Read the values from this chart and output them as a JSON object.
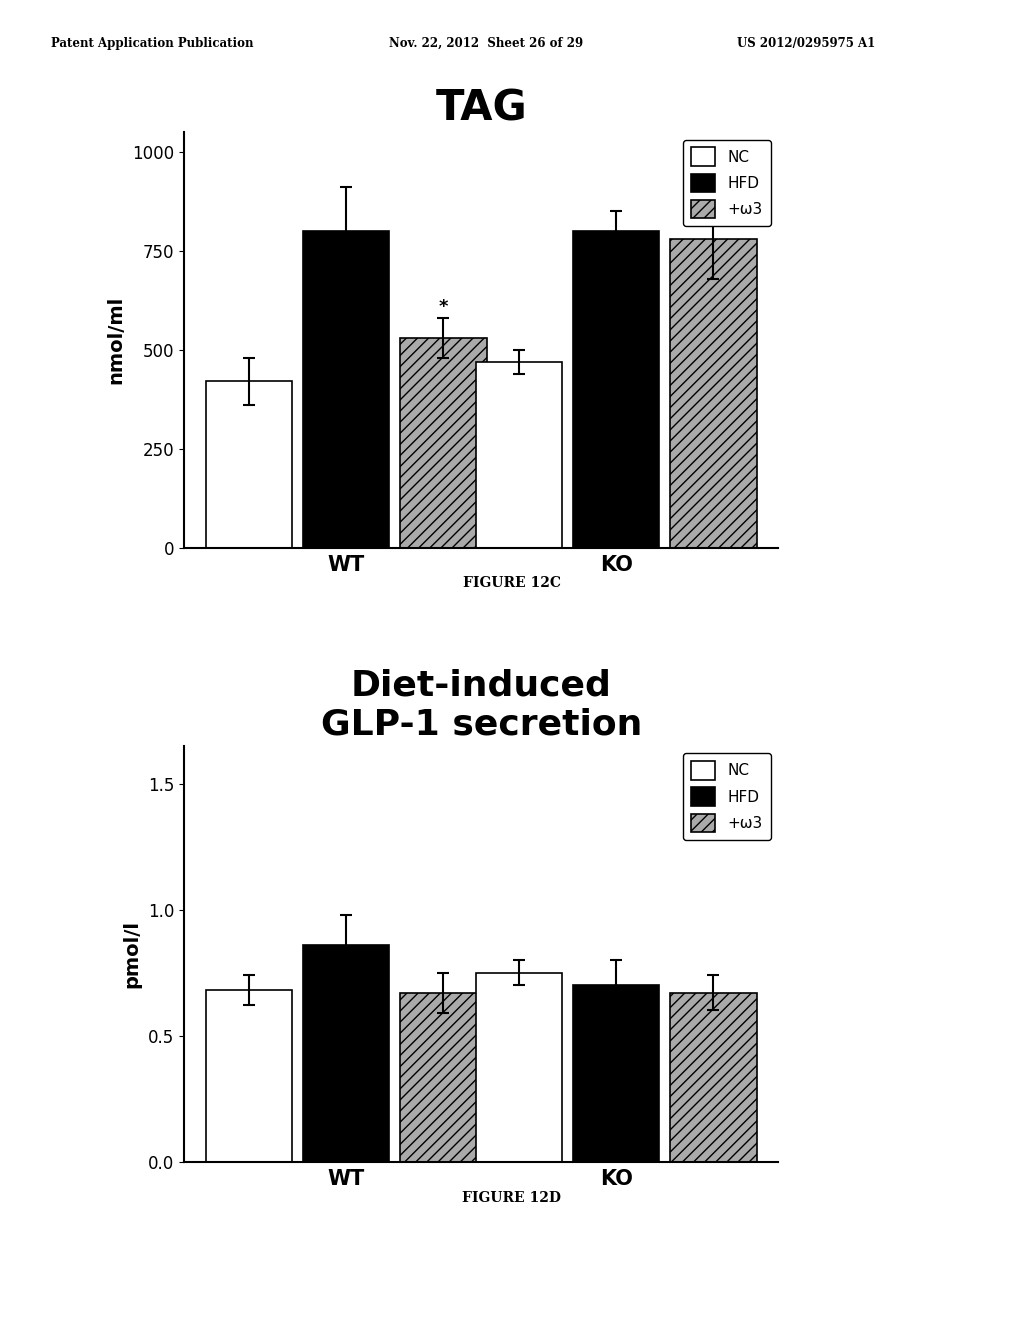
{
  "fig_width": 10.24,
  "fig_height": 13.2,
  "background_color": "#ffffff",
  "header_left": "Patent Application Publication",
  "header_mid": "Nov. 22, 2012  Sheet 26 of 29",
  "header_right": "US 2012/0295975 A1",
  "chart1": {
    "title": "TAG",
    "title_fontsize": 30,
    "title_fontweight": "bold",
    "ylabel": "nmol/ml",
    "ylabel_fontsize": 14,
    "groups": [
      "WT",
      "KO"
    ],
    "conditions": [
      "NC",
      "HFD",
      "+ω3"
    ],
    "values_WT": [
      420,
      800,
      530
    ],
    "values_KO": [
      470,
      800,
      780
    ],
    "errors_WT": [
      60,
      110,
      50
    ],
    "errors_KO": [
      30,
      50,
      100
    ],
    "ylim": [
      0,
      1050
    ],
    "yticks": [
      0,
      250,
      500,
      750,
      1000
    ],
    "bar_colors": [
      "white",
      "black",
      "#aaaaaa"
    ],
    "bar_hatches": [
      null,
      null,
      "///"
    ],
    "figure_label": "FIGURE 12C",
    "annotation": "*",
    "annotation_value": 585
  },
  "chart2": {
    "title": "Diet-induced\nGLP-1 secretion",
    "title_fontsize": 26,
    "title_fontweight": "bold",
    "ylabel": "pmol/l",
    "ylabel_fontsize": 14,
    "groups": [
      "WT",
      "KO"
    ],
    "conditions": [
      "NC",
      "HFD",
      "+ω3"
    ],
    "values_WT": [
      0.68,
      0.86,
      0.67
    ],
    "values_KO": [
      0.75,
      0.7,
      0.67
    ],
    "errors_WT": [
      0.06,
      0.12,
      0.08
    ],
    "errors_KO": [
      0.05,
      0.1,
      0.07
    ],
    "ylim": [
      0.0,
      1.65
    ],
    "yticks": [
      0.0,
      0.5,
      1.0,
      1.5
    ],
    "bar_colors": [
      "white",
      "black",
      "#aaaaaa"
    ],
    "bar_hatches": [
      null,
      null,
      "///"
    ],
    "figure_label": "FIGURE 12D"
  }
}
